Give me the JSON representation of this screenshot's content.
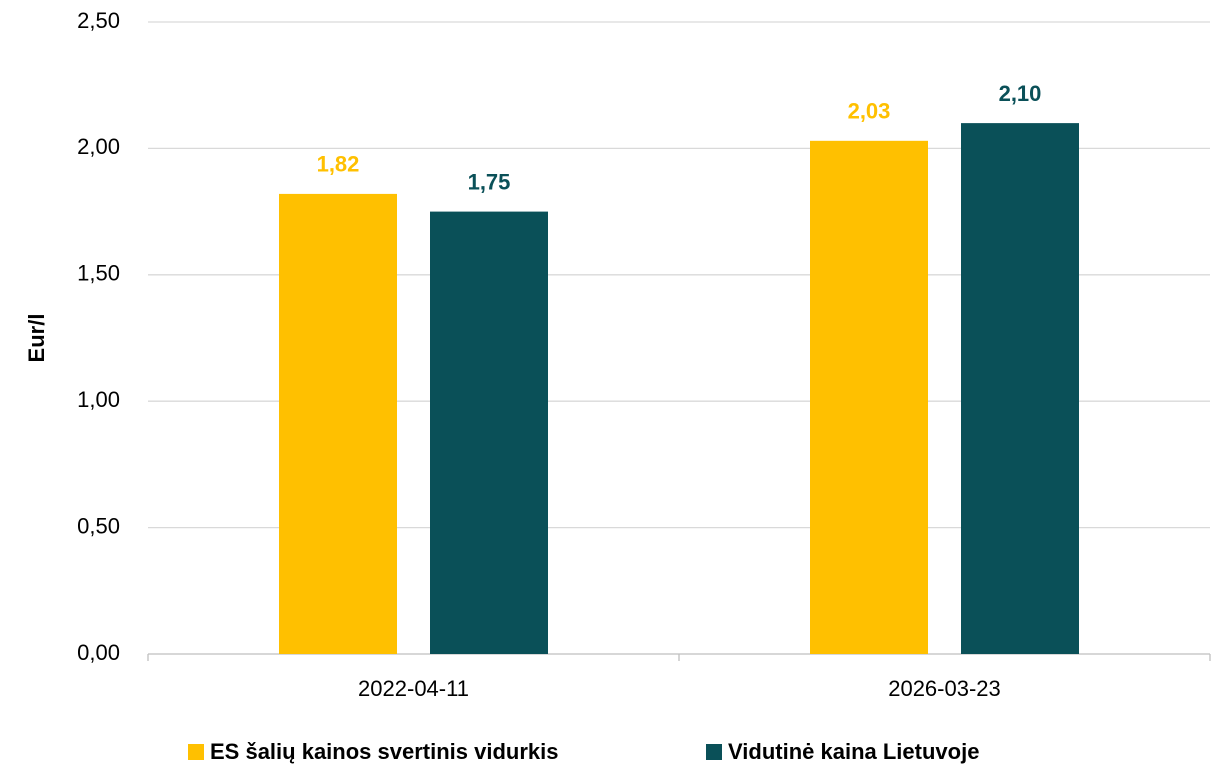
{
  "chart_data": {
    "type": "bar",
    "y_label": "Eur/l",
    "categories": [
      "2022-04-11",
      "2026-03-23"
    ],
    "series": [
      {
        "name": "ES šalių kainos svertinis vidurkis",
        "color": "#ffc000",
        "values": [
          1.82,
          2.03
        ],
        "value_labels": [
          "1,82",
          "2,03"
        ]
      },
      {
        "name": "Vidutinė kaina Lietuvoje",
        "color": "#0a5058",
        "values": [
          1.75,
          2.1
        ],
        "value_labels": [
          "1,75",
          "2,10"
        ]
      }
    ],
    "ylim": [
      0,
      2.5
    ],
    "yticks": [
      {
        "value": 0,
        "label": "0,00"
      },
      {
        "value": 0.5,
        "label": "0,50"
      },
      {
        "value": 1,
        "label": "1,00"
      },
      {
        "value": 1.5,
        "label": "1,50"
      },
      {
        "value": 2,
        "label": "2,00"
      },
      {
        "value": 2.5,
        "label": "2,50"
      }
    ],
    "grid": true,
    "legend": "bottom"
  }
}
